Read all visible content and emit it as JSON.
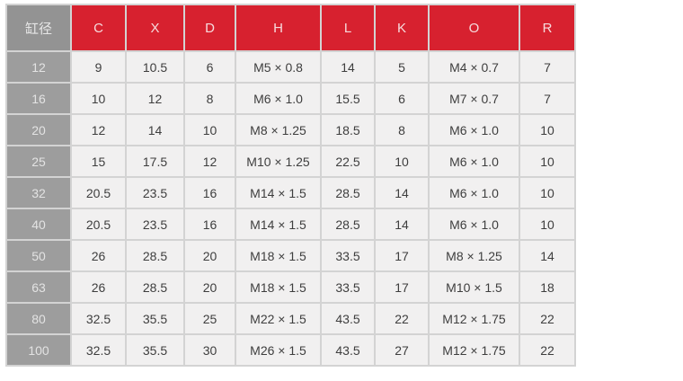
{
  "page": {
    "background_color": "#ffffff"
  },
  "table": {
    "corner_header": "缸径",
    "columns": [
      "C",
      "X",
      "D",
      "H",
      "L",
      "K",
      "O",
      "R"
    ],
    "rows": [
      {
        "bore": "12",
        "values": [
          "9",
          "10.5",
          "6",
          "M5 × 0.8",
          "14",
          "5",
          "M4 × 0.7",
          "7"
        ]
      },
      {
        "bore": "16",
        "values": [
          "10",
          "12",
          "8",
          "M6 × 1.0",
          "15.5",
          "6",
          "M7 × 0.7",
          "7"
        ]
      },
      {
        "bore": "20",
        "values": [
          "12",
          "14",
          "10",
          "M8 × 1.25",
          "18.5",
          "8",
          "M6 × 1.0",
          "10"
        ]
      },
      {
        "bore": "25",
        "values": [
          "15",
          "17.5",
          "12",
          "M10 × 1.25",
          "22.5",
          "10",
          "M6 × 1.0",
          "10"
        ]
      },
      {
        "bore": "32",
        "values": [
          "20.5",
          "23.5",
          "16",
          "M14 × 1.5",
          "28.5",
          "14",
          "M6 × 1.0",
          "10"
        ]
      },
      {
        "bore": "40",
        "values": [
          "20.5",
          "23.5",
          "16",
          "M14 × 1.5",
          "28.5",
          "14",
          "M6 × 1.0",
          "10"
        ]
      },
      {
        "bore": "50",
        "values": [
          "26",
          "28.5",
          "20",
          "M18 × 1.5",
          "33.5",
          "17",
          "M8 × 1.25",
          "14"
        ]
      },
      {
        "bore": "63",
        "values": [
          "26",
          "28.5",
          "20",
          "M18 × 1.5",
          "33.5",
          "17",
          "M10 × 1.5",
          "18"
        ]
      },
      {
        "bore": "80",
        "values": [
          "32.5",
          "35.5",
          "25",
          "M22 × 1.5",
          "43.5",
          "22",
          "M12 × 1.75",
          "22"
        ]
      },
      {
        "bore": "100",
        "values": [
          "32.5",
          "35.5",
          "30",
          "M26 × 1.5",
          "43.5",
          "27",
          "M12 × 1.75",
          "22"
        ]
      }
    ],
    "colors": {
      "header_red": "#d7212f",
      "corner_gray": "#939393",
      "row_label_gray": "#9d9d9d",
      "cell_background": "#f1f0f0",
      "grid_line": "#d3d3d3",
      "header_text": "#f6dbdd",
      "label_text": "#e3e3e3",
      "cell_text": "#3e3e3e"
    }
  }
}
